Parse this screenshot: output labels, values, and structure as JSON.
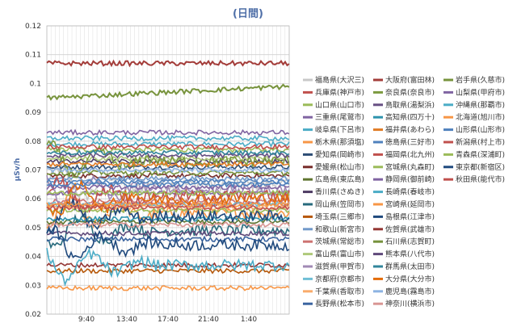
{
  "chart_data": {
    "type": "line",
    "title": "(日間)",
    "xlabel": "",
    "ylabel": "μSv/h",
    "ylim": [
      0.02,
      0.12
    ],
    "yticks": [
      "0.02",
      "0.03",
      "0.04",
      "0.05",
      "0.06",
      "0.07",
      "0.08",
      "0.09",
      "0.1",
      "0.11",
      "0.12"
    ],
    "xticks": [
      "9:40",
      "13:40",
      "17:40",
      "21:40",
      "1:40"
    ],
    "grid": true,
    "legend_position": "right",
    "series": [
      {
        "name": "福島県(大沢三)",
        "color": "#c8c8c8",
        "level": 0.065
      },
      {
        "name": "兵庫県(神戸市)",
        "color": "#c0504d",
        "level": 0.058
      },
      {
        "name": "山口県(山口市)",
        "color": "#9bbb59",
        "level": 0.077
      },
      {
        "name": "三重県(尾鷲市)",
        "color": "#8064a2",
        "level": 0.062
      },
      {
        "name": "岐阜県(下呂市)",
        "color": "#4bacc6",
        "level": 0.079
      },
      {
        "name": "栃木県(那須塩)",
        "color": "#f79646",
        "level": 0.055
      },
      {
        "name": "愛知県(岡崎市)",
        "color": "#2c4d75",
        "level": 0.071
      },
      {
        "name": "愛媛県(松山市)",
        "color": "#772c2a",
        "level": 0.068
      },
      {
        "name": "広島県(東広島)",
        "color": "#5f7530",
        "level": 0.052
      },
      {
        "name": "香川県(さぬき)",
        "color": "#4d3b62",
        "level": 0.073
      },
      {
        "name": "岡山県(笠岡市)",
        "color": "#276a7c",
        "level": 0.049
      },
      {
        "name": "埼玉県(三郷市)",
        "color": "#b65708",
        "level": 0.035
      },
      {
        "name": "和歌山(新宮市)",
        "color": "#729aca",
        "level": 0.067
      },
      {
        "name": "茨城県(常総市)",
        "color": "#cd7371",
        "level": 0.059
      },
      {
        "name": "富山県(富山市)",
        "color": "#afc97a",
        "level": 0.074
      },
      {
        "name": "滋賀県(甲賀市)",
        "color": "#a18ab5",
        "level": 0.063
      },
      {
        "name": "京都府(京都市)",
        "color": "#6fbfd6",
        "level": 0.058
      },
      {
        "name": "千葉県(香取市)",
        "color": "#f9ab6b",
        "level": 0.057
      },
      {
        "name": "長野県(松本市)",
        "color": "#3a64a0",
        "level": 0.046
      },
      {
        "name": "大阪府(富田林)",
        "color": "#a33c39",
        "level": 0.107
      },
      {
        "name": "奈良県(奈良市)",
        "color": "#7c9a3f",
        "level": 0.073
      },
      {
        "name": "鳥取県(湯梨浜)",
        "color": "#674f83",
        "level": 0.075
      },
      {
        "name": "高知県(四万十)",
        "color": "#2d93ad",
        "level": 0.053
      },
      {
        "name": "福井県(あわら)",
        "color": "#e07b24",
        "level": 0.072
      },
      {
        "name": "徳島県(三好市)",
        "color": "#4f81bd",
        "level": 0.066
      },
      {
        "name": "福岡県(北九州)",
        "color": "#c0504d",
        "level": 0.061
      },
      {
        "name": "宮城県(丸森町)",
        "color": "#9bbb59",
        "level": 0.056
      },
      {
        "name": "静岡県(御前崎)",
        "color": "#8064a2",
        "level": 0.064
      },
      {
        "name": "長崎県(春岐市)",
        "color": "#4bacc6",
        "level": 0.081
      },
      {
        "name": "宮崎県(延岡市)",
        "color": "#f79646",
        "level": 0.029
      },
      {
        "name": "島根県(江津市)",
        "color": "#1f497d",
        "level": 0.054
      },
      {
        "name": "佐賀県(武雄市)",
        "color": "#943634",
        "level": 0.037
      },
      {
        "name": "石川県(志賀町)",
        "color": "#76923c",
        "level": 0.069
      },
      {
        "name": "熊本県(八代市)",
        "color": "#5f497a",
        "level": 0.048
      },
      {
        "name": "群馬県(太田市)",
        "color": "#31859b",
        "level": 0.076
      },
      {
        "name": "大分県(大分市)",
        "color": "#e36c09",
        "level": 0.06
      },
      {
        "name": "鹿児島(霧島市)",
        "color": "#8db3e2",
        "level": 0.07
      },
      {
        "name": "神奈川(横浜市)",
        "color": "#d99694",
        "level": 0.051
      },
      {
        "name": "岩手県(久慈市)",
        "color": "#77933c",
        "level": 0.095
      },
      {
        "name": "山梨県(甲府市)",
        "color": "#8064a2",
        "level": 0.083
      },
      {
        "name": "沖縄県(那覇市)",
        "color": "#4bacc6",
        "level": 0.037
      },
      {
        "name": "北海道(旭川市)",
        "color": "#f79646",
        "level": 0.058
      },
      {
        "name": "山形県(山形市)",
        "color": "#4f81bd",
        "level": 0.065
      },
      {
        "name": "新潟県(村上市)",
        "color": "#c0504d",
        "level": 0.078
      },
      {
        "name": "青森県(深浦町)",
        "color": "#9bbb59",
        "level": 0.062
      },
      {
        "name": "東京都(新宿区)",
        "color": "#1f497d",
        "level": 0.044
      },
      {
        "name": "秋田県(能代市)",
        "color": "#c0504d",
        "level": 0.057
      }
    ]
  }
}
